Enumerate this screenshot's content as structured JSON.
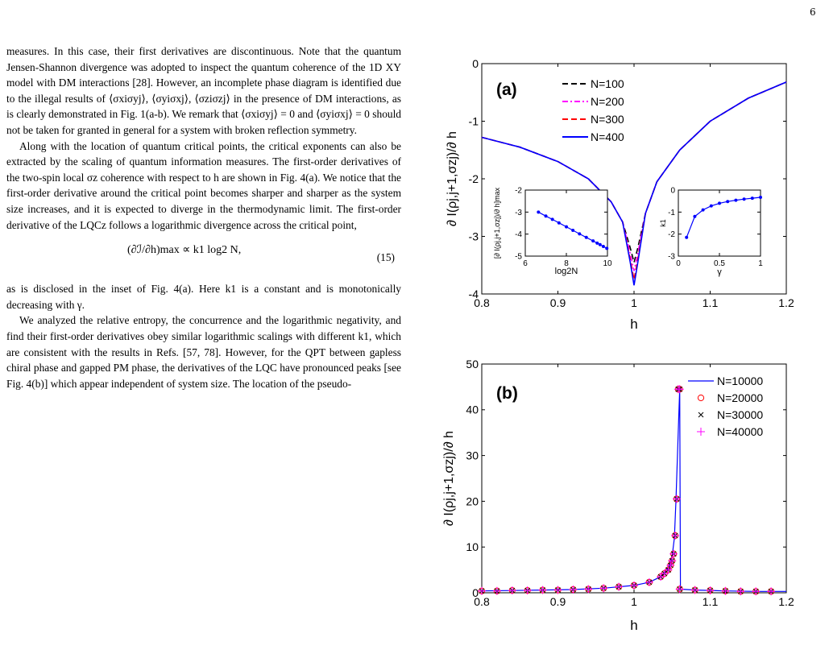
{
  "page_number": "6",
  "text": {
    "p1": "measures. In this case, their first derivatives are discontinuous. Note that the quantum Jensen-Shannon divergence was adopted to inspect the quantum coherence of the 1D XY model with DM interactions [28]. However, an incomplete phase diagram is identified due to the illegal results of ⟨σxiσyj⟩, ⟨σyiσxj⟩, ⟨σziσzj⟩ in the presence of DM interactions, as is clearly demonstrated in Fig. 1(a-b). We remark that ⟨σxiσyj⟩ = 0 and ⟨σyiσxj⟩ = 0 should not be taken for granted in general for a system with broken reflection symmetry.",
    "p2": "Along with the location of quantum critical points, the critical exponents can also be extracted by the scaling of quantum information measures. The first-order derivatives of the two-spin local σz coherence with respect to h are shown in Fig. 4(a). We notice that the first-order derivative around the critical point becomes sharper and sharper as the system size increases, and it is expected to diverge in the thermodynamic limit. The first-order derivative of the LQCz follows a logarithmic divergence across the critical point,",
    "equation": "(∂ℐ/∂h)max ∝ k1 log2 N,",
    "equation_number": "(15)",
    "p3": "as is disclosed in the inset of Fig. 4(a). Here k1 is a constant and is monotonically decreasing with γ.",
    "p4": "We analyzed the relative entropy, the concurrence and the logarithmic negativity, and find their first-order derivatives obey similar logarithmic scalings with different k1, which are consistent with the results in Refs. [57, 78]. However, for the QPT between gapless chiral phase and gapped PM phase, the derivatives of the LQC have pronounced peaks [see Fig. 4(b)] which appear independent of system size. The location of the pseudo-"
  },
  "chart_data": [
    {
      "type": "line",
      "panel_label": "(a)",
      "xlabel": "h",
      "ylabel": "∂ I(ρj,j+1,σzj)/∂ h",
      "xlim": [
        0.8,
        1.2
      ],
      "ylim": [
        -4,
        0
      ],
      "xticks": [
        "0.8",
        "0.9",
        "1",
        "1.1",
        "1.2"
      ],
      "yticks": [
        "0",
        "-1",
        "-2",
        "-3",
        "-4"
      ],
      "legend_position": "top-right",
      "series": [
        {
          "name": "N=100",
          "color": "#000000",
          "dash": "dashed",
          "x": [
            0.8,
            0.85,
            0.9,
            0.94,
            0.97,
            0.985,
            0.995,
            1.0,
            1.005,
            1.015,
            1.03,
            1.06,
            1.1,
            1.15,
            1.2
          ],
          "y": [
            -1.28,
            -1.45,
            -1.7,
            -2.0,
            -2.4,
            -2.75,
            -3.2,
            -3.45,
            -3.2,
            -2.6,
            -2.05,
            -1.5,
            -1.0,
            -0.6,
            -0.32
          ]
        },
        {
          "name": "N=200",
          "color": "#ff00ff",
          "dash": "dashdot",
          "x": [
            0.8,
            0.85,
            0.9,
            0.94,
            0.97,
            0.985,
            0.995,
            1.0,
            1.005,
            1.015,
            1.03,
            1.06,
            1.1,
            1.15,
            1.2
          ],
          "y": [
            -1.28,
            -1.45,
            -1.7,
            -2.0,
            -2.4,
            -2.75,
            -3.3,
            -3.6,
            -3.3,
            -2.6,
            -2.05,
            -1.5,
            -1.0,
            -0.6,
            -0.32
          ]
        },
        {
          "name": "N=300",
          "color": "#ff0000",
          "dash": "dashed",
          "x": [
            0.8,
            0.85,
            0.9,
            0.94,
            0.97,
            0.985,
            0.995,
            1.0,
            1.005,
            1.015,
            1.03,
            1.06,
            1.1,
            1.15,
            1.2
          ],
          "y": [
            -1.28,
            -1.45,
            -1.7,
            -2.0,
            -2.4,
            -2.75,
            -3.4,
            -3.75,
            -3.4,
            -2.6,
            -2.05,
            -1.5,
            -1.0,
            -0.6,
            -0.32
          ]
        },
        {
          "name": "N=400",
          "color": "#0000ff",
          "dash": "solid",
          "x": [
            0.8,
            0.85,
            0.9,
            0.94,
            0.97,
            0.985,
            0.995,
            1.0,
            1.005,
            1.015,
            1.03,
            1.06,
            1.1,
            1.15,
            1.2
          ],
          "y": [
            -1.28,
            -1.45,
            -1.7,
            -2.0,
            -2.4,
            -2.75,
            -3.45,
            -3.85,
            -3.45,
            -2.6,
            -2.05,
            -1.5,
            -1.0,
            -0.6,
            -0.32
          ]
        }
      ],
      "insets": [
        {
          "type": "line",
          "xlabel": "log2N",
          "ylabel": "[∂ I(ρj,j+1,σzj)/∂ h]max",
          "xlim": [
            6,
            10
          ],
          "ylim": [
            -5,
            -2
          ],
          "xticks": [
            "6",
            "8",
            "10"
          ],
          "yticks": [
            "-2",
            "-3",
            "-4",
            "-5"
          ],
          "series": [
            {
              "color": "#0000ff",
              "x": [
                6.64,
                7.0,
                7.32,
                7.64,
                8.0,
                8.32,
                8.64,
                8.97,
                9.3,
                9.5,
                9.64,
                9.8,
                9.97
              ],
              "y": [
                -3.0,
                -3.18,
                -3.33,
                -3.49,
                -3.67,
                -3.83,
                -3.99,
                -4.15,
                -4.31,
                -4.41,
                -4.48,
                -4.56,
                -4.65
              ]
            }
          ]
        },
        {
          "type": "line",
          "xlabel": "γ",
          "ylabel": "k1",
          "xlim": [
            0,
            1
          ],
          "ylim": [
            -3,
            0
          ],
          "xticks": [
            "0",
            "0.5",
            "1"
          ],
          "yticks": [
            "0",
            "-1",
            "-2",
            "-3"
          ],
          "series": [
            {
              "color": "#0000ff",
              "x": [
                0.1,
                0.2,
                0.3,
                0.4,
                0.5,
                0.6,
                0.7,
                0.8,
                0.9,
                1.0
              ],
              "y": [
                -2.15,
                -1.2,
                -0.9,
                -0.72,
                -0.6,
                -0.52,
                -0.46,
                -0.41,
                -0.37,
                -0.33
              ]
            }
          ]
        }
      ]
    },
    {
      "type": "line",
      "panel_label": "(b)",
      "xlabel": "h",
      "ylabel": "∂ I(ρj,j+1,σzj)/∂ h",
      "xlim": [
        0.8,
        1.2
      ],
      "ylim": [
        0,
        50
      ],
      "xticks": [
        "0.8",
        "0.9",
        "1",
        "1.1",
        "1.2"
      ],
      "yticks": [
        "50",
        "40",
        "30",
        "20",
        "10",
        "0"
      ],
      "legend_position": "top-right",
      "series": [
        {
          "name": "N=10000",
          "color": "#0000ff",
          "marker": "line",
          "x": [
            0.8,
            0.84,
            0.88,
            0.92,
            0.96,
            1.0,
            1.02,
            1.035,
            1.045,
            1.05,
            1.053,
            1.055,
            1.057,
            1.059,
            1.06,
            1.061,
            1.08,
            1.12,
            1.16,
            1.2
          ],
          "y": [
            0.4,
            0.5,
            0.6,
            0.7,
            1.0,
            1.6,
            2.3,
            3.5,
            5.5,
            8.0,
            12.0,
            20.0,
            30.0,
            40.0,
            44.5,
            0.8,
            0.6,
            0.4,
            0.3,
            0.3
          ]
        },
        {
          "name": "N=20000",
          "color": "#ff0000",
          "marker": "circle",
          "x": [
            0.8,
            0.82,
            0.84,
            0.86,
            0.88,
            0.9,
            0.92,
            0.94,
            0.96,
            0.98,
            1.0,
            1.02,
            1.035,
            1.04,
            1.045,
            1.048,
            1.05,
            1.052,
            1.054,
            1.056,
            1.058,
            1.06,
            1.06,
            1.08,
            1.1,
            1.12,
            1.14,
            1.16,
            1.18
          ],
          "y": [
            0.4,
            0.4,
            0.5,
            0.5,
            0.6,
            0.6,
            0.7,
            0.8,
            1.0,
            1.3,
            1.6,
            2.3,
            3.5,
            4.2,
            5.0,
            6.0,
            7.0,
            8.5,
            12.5,
            20.5,
            44.5,
            44.5,
            0.8,
            0.6,
            0.5,
            0.4,
            0.3,
            0.3,
            0.3
          ]
        },
        {
          "name": "N=30000",
          "color": "#000000",
          "marker": "x",
          "x": [
            0.8,
            0.82,
            0.84,
            0.86,
            0.88,
            0.9,
            0.92,
            0.94,
            0.96,
            0.98,
            1.0,
            1.02,
            1.035,
            1.04,
            1.045,
            1.048,
            1.05,
            1.052,
            1.054,
            1.056,
            1.058,
            1.06,
            1.06,
            1.08,
            1.1,
            1.12,
            1.14,
            1.16,
            1.18
          ],
          "y": [
            0.4,
            0.4,
            0.5,
            0.5,
            0.6,
            0.6,
            0.7,
            0.8,
            1.0,
            1.3,
            1.6,
            2.3,
            3.5,
            4.2,
            5.0,
            6.0,
            7.0,
            8.5,
            12.5,
            20.5,
            44.5,
            44.5,
            0.8,
            0.6,
            0.5,
            0.4,
            0.3,
            0.3,
            0.3
          ]
        },
        {
          "name": "N=40000",
          "color": "#ff00ff",
          "marker": "plus",
          "x": [
            0.8,
            0.82,
            0.84,
            0.86,
            0.88,
            0.9,
            0.92,
            0.94,
            0.96,
            0.98,
            1.0,
            1.02,
            1.035,
            1.04,
            1.045,
            1.048,
            1.05,
            1.052,
            1.054,
            1.056,
            1.058,
            1.06,
            1.06,
            1.08,
            1.1,
            1.12,
            1.14,
            1.16,
            1.18
          ],
          "y": [
            0.4,
            0.4,
            0.5,
            0.5,
            0.6,
            0.6,
            0.7,
            0.8,
            1.0,
            1.3,
            1.6,
            2.3,
            3.5,
            4.2,
            5.0,
            6.0,
            7.0,
            8.5,
            12.5,
            20.5,
            44.5,
            44.5,
            0.8,
            0.6,
            0.5,
            0.4,
            0.3,
            0.3,
            0.3
          ]
        }
      ]
    }
  ]
}
